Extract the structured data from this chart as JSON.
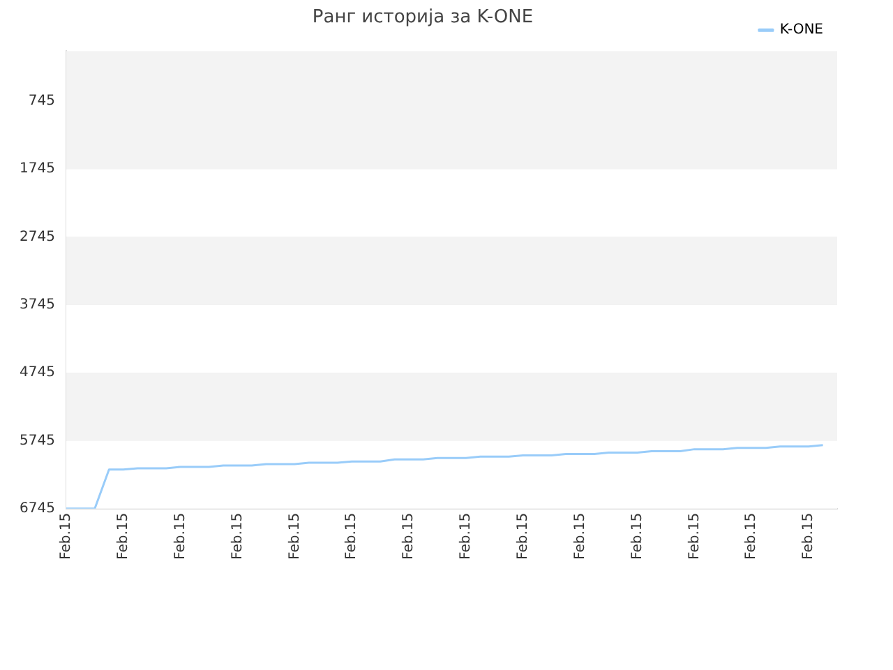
{
  "chart_data": {
    "type": "line",
    "title": "Ранг историја за K-ONE",
    "legend": "top right",
    "grid": "y",
    "marker": "none",
    "line_style": "solid",
    "categories": [
      "Feb.15",
      null,
      null,
      null,
      "Feb.15",
      null,
      null,
      null,
      "Feb.15",
      null,
      null,
      null,
      "Feb.15",
      null,
      null,
      null,
      "Feb.15",
      null,
      null,
      null,
      "Feb.15",
      null,
      null,
      null,
      "Feb.15",
      null,
      null,
      null,
      "Feb.15",
      null,
      null,
      null,
      "Feb.15",
      null,
      null,
      null,
      "Feb.15",
      null,
      null,
      null,
      "Feb.15",
      null,
      null,
      null,
      "Feb.15",
      null,
      null,
      null,
      "Feb.15",
      null,
      null,
      null,
      "Feb.15",
      null,
      null
    ],
    "ylim": [
      6745,
      8
    ],
    "yticks": [
      745,
      1745,
      2745,
      3745,
      4745,
      5745,
      6745
    ],
    "series": [
      {
        "name": "K-ONE",
        "color": "#99ccf9",
        "values": [
          6745,
          6745,
          6745,
          6170,
          6170,
          6150,
          6150,
          6150,
          6130,
          6130,
          6130,
          6110,
          6110,
          6110,
          6090,
          6090,
          6090,
          6070,
          6070,
          6070,
          6050,
          6050,
          6050,
          6020,
          6020,
          6020,
          6000,
          6000,
          6000,
          5980,
          5980,
          5980,
          5960,
          5960,
          5960,
          5940,
          5940,
          5940,
          5920,
          5920,
          5920,
          5900,
          5900,
          5900,
          5870,
          5870,
          5870,
          5850,
          5850,
          5850,
          5830,
          5830,
          5830,
          5810,
          null
        ]
      }
    ]
  }
}
